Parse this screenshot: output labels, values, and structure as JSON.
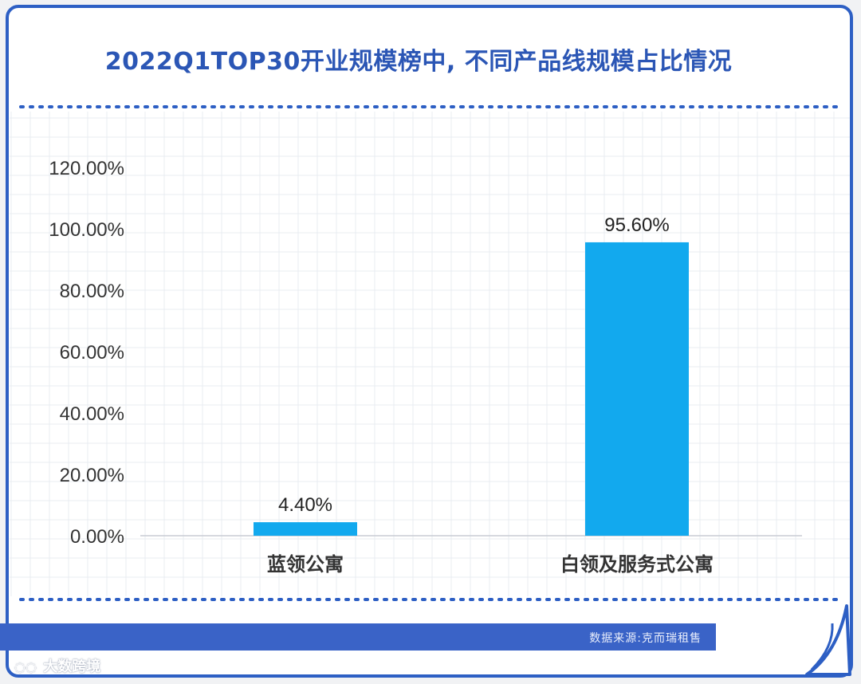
{
  "chart_data": {
    "type": "bar",
    "title": "2022Q1TOP30开业规模榜中, 不同产品线规模占比情况",
    "categories": [
      "蓝领公寓",
      "白领及服务式公寓"
    ],
    "values": [
      4.4,
      95.6
    ],
    "data_labels": [
      "4.40%",
      "95.60%"
    ],
    "ylim": [
      0,
      120
    ],
    "y_ticks": [
      0,
      20,
      40,
      60,
      80,
      100,
      120
    ],
    "y_tick_labels": [
      "0.00%",
      "20.00%",
      "40.00%",
      "60.00%",
      "80.00%",
      "100.00%",
      "120.00%"
    ],
    "xlabel": "",
    "ylabel": "",
    "grid": true,
    "legend": "none",
    "bar_color": "#12a9ee"
  },
  "footer": {
    "source": "数据来源:克而瑞租售"
  },
  "watermark": {
    "text": "大数跨境",
    "icon": "bubble-logo-icon"
  },
  "colors": {
    "frame": "#2d5fc4",
    "title": "#2b56b5",
    "source_bar": "#3a63c7",
    "bar": "#12a9ee"
  }
}
